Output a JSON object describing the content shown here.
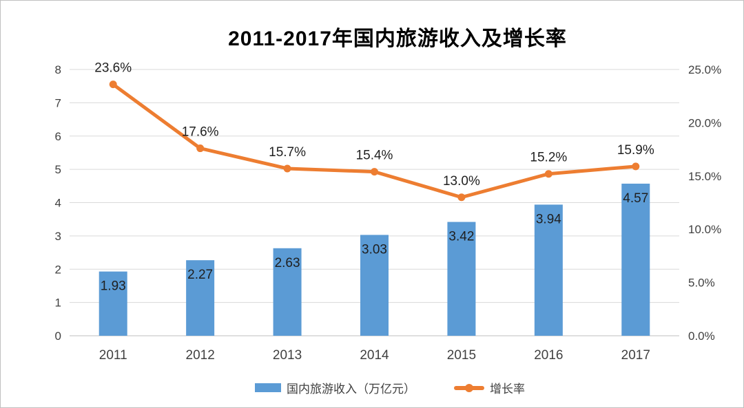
{
  "title": "2011-2017年国内旅游收入及增长率",
  "colors": {
    "bar": "#5B9BD5",
    "line": "#ED7D31",
    "grid": "#D9D9D9",
    "axis_line": "#BFBFBF",
    "axis_text": "#404040",
    "data_label": "#1f1f1f",
    "title_text": "#000000"
  },
  "legend": {
    "revenue_label": "国内旅游收入（万亿元）",
    "growth_label": "增长率"
  },
  "chart_data": {
    "type": "bar+line",
    "title": "2011-2017年国内旅游收入及增长率",
    "categories": [
      "2011",
      "2012",
      "2013",
      "2014",
      "2015",
      "2016",
      "2017"
    ],
    "series": [
      {
        "name": "国内旅游收入（万亿元）",
        "type": "bar",
        "axis": "left",
        "values": [
          1.93,
          2.27,
          2.63,
          3.03,
          3.42,
          3.94,
          4.57
        ],
        "labels": [
          "1.93",
          "2.27",
          "2.63",
          "3.03",
          "3.42",
          "3.94",
          "4.57"
        ]
      },
      {
        "name": "增长率",
        "type": "line",
        "axis": "right",
        "values": [
          23.6,
          17.6,
          15.7,
          15.4,
          13.0,
          15.2,
          15.9
        ],
        "labels": [
          "23.6%",
          "17.6%",
          "15.7%",
          "15.4%",
          "13.0%",
          "15.2%",
          "15.9%"
        ]
      }
    ],
    "left_axis": {
      "min": 0,
      "max": 8,
      "tick_values": [
        0,
        1,
        2,
        3,
        4,
        5,
        6,
        7,
        8
      ],
      "tick_labels": [
        "0",
        "1",
        "2",
        "3",
        "4",
        "5",
        "6",
        "7",
        "8"
      ]
    },
    "right_axis": {
      "min": 0,
      "max": 25,
      "tick_values": [
        0,
        5,
        10,
        15,
        20,
        25
      ],
      "tick_labels": [
        "0.0%",
        "5.0%",
        "10.0%",
        "15.0%",
        "20.0%",
        "25.0%"
      ]
    },
    "grid": true,
    "legend_position": "bottom"
  }
}
